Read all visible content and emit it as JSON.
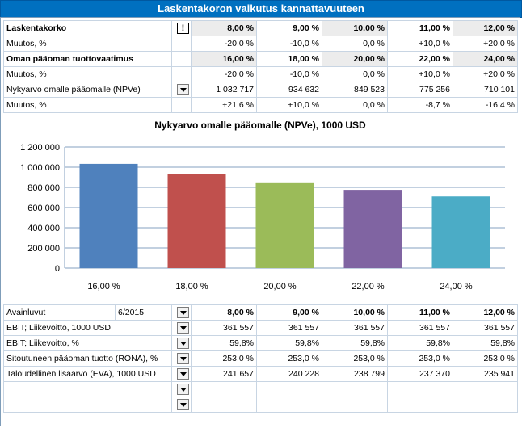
{
  "title": "Laskentakoron vaikutus kannattavuuteen",
  "top": {
    "rows": [
      {
        "label": "Laskentakorko",
        "bold": true,
        "control": "info",
        "shade": true,
        "values": [
          "8,00 %",
          "9,00 %",
          "10,00 %",
          "11,00 %",
          "12,00 %"
        ]
      },
      {
        "label": "Muutos, %",
        "bold": false,
        "control": "",
        "shade": false,
        "values": [
          "-20,0 %",
          "-10,0 %",
          "0,0 %",
          "+10,0 %",
          "+20,0 %"
        ]
      },
      {
        "label": "Oman pääoman tuottovaatimus",
        "bold": true,
        "control": "",
        "shade": true,
        "values": [
          "16,00 %",
          "18,00 %",
          "20,00 %",
          "22,00 %",
          "24,00 %"
        ]
      },
      {
        "label": "Muutos, %",
        "bold": false,
        "control": "",
        "shade": false,
        "values": [
          "-20,0 %",
          "-10,0 %",
          "0,0 %",
          "+10,0 %",
          "+20,0 %"
        ]
      },
      {
        "label": "Nykyarvo omalle pääomalle (NPVe)",
        "bold": false,
        "control": "drop",
        "shade": false,
        "values": [
          "1 032 717",
          "934 632",
          "849 523",
          "775 256",
          "710 101"
        ]
      },
      {
        "label": "Muutos, %",
        "bold": false,
        "control": "",
        "shade": false,
        "values": [
          "+21,6 %",
          "+10,0 %",
          "0,0 %",
          "-8,7 %",
          "-16,4 %"
        ]
      }
    ],
    "info_symbol": "!"
  },
  "chart_data": {
    "type": "bar",
    "title": "Nykyarvo omalle pääomalle (NPVe), 1000 USD",
    "categories": [
      "16,00 %",
      "18,00 %",
      "20,00 %",
      "22,00 %",
      "24,00 %"
    ],
    "values": [
      1032717,
      934632,
      849523,
      775256,
      710101
    ],
    "colors": [
      "#4f81bd",
      "#c0504d",
      "#9bbb59",
      "#8064a2",
      "#4bacc6"
    ],
    "ylim": [
      0,
      1200000
    ],
    "yticks": [
      0,
      200000,
      400000,
      600000,
      800000,
      1000000,
      1200000
    ],
    "ytick_labels": [
      "0",
      "200 000",
      "400 000",
      "600 000",
      "800 000",
      "1 000 000",
      "1 200 000"
    ],
    "xlabel": "",
    "ylabel": "",
    "grid": true
  },
  "bottom": {
    "header_label": "Avainluvut",
    "period": "6/2015",
    "header_values": [
      "8,00 %",
      "9,00 %",
      "10,00 %",
      "11,00 %",
      "12,00 %"
    ],
    "rows": [
      {
        "label": "EBIT; Liikevoitto, 1000 USD",
        "values": [
          "361 557",
          "361 557",
          "361 557",
          "361 557",
          "361 557"
        ]
      },
      {
        "label": "EBIT; Liikevoitto, %",
        "values": [
          "59,8%",
          "59,8%",
          "59,8%",
          "59,8%",
          "59,8%"
        ]
      },
      {
        "label": "Sitoutuneen pääoman tuotto (RONA), %",
        "values": [
          "253,0 %",
          "253,0 %",
          "253,0 %",
          "253,0 %",
          "253,0 %"
        ]
      },
      {
        "label": "Taloudellinen lisäarvo (EVA), 1000 USD",
        "values": [
          "241 657",
          "240 228",
          "238 799",
          "237 370",
          "235 941"
        ]
      },
      {
        "label": "",
        "values": [
          "",
          "",
          "",
          "",
          ""
        ]
      },
      {
        "label": "",
        "values": [
          "",
          "",
          "",
          "",
          ""
        ]
      }
    ]
  }
}
